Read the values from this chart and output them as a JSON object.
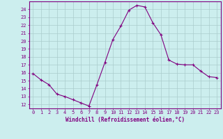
{
  "x": [
    0,
    1,
    2,
    3,
    4,
    5,
    6,
    7,
    8,
    9,
    10,
    11,
    12,
    13,
    14,
    15,
    16,
    17,
    18,
    19,
    20,
    21,
    22,
    23
  ],
  "y": [
    15.9,
    15.1,
    14.5,
    13.3,
    13.0,
    12.6,
    12.2,
    11.8,
    14.5,
    17.3,
    20.2,
    21.9,
    23.9,
    24.5,
    24.3,
    22.3,
    20.8,
    17.6,
    17.1,
    17.0,
    17.0,
    16.2,
    15.5,
    15.4
  ],
  "line_color": "#800080",
  "marker": "+",
  "marker_size": 3,
  "bg_color": "#cceeee",
  "grid_color": "#aacccc",
  "xlabel": "Windchill (Refroidissement éolien,°C)",
  "xlim": [
    -0.5,
    23.5
  ],
  "ylim": [
    11.5,
    25.0
  ],
  "yticks": [
    12,
    13,
    14,
    15,
    16,
    17,
    18,
    19,
    20,
    21,
    22,
    23,
    24
  ],
  "xticks": [
    0,
    1,
    2,
    3,
    4,
    5,
    6,
    7,
    8,
    9,
    10,
    11,
    12,
    13,
    14,
    15,
    16,
    17,
    18,
    19,
    20,
    21,
    22,
    23
  ],
  "tick_color": "#800080",
  "label_color": "#800080",
  "spine_color": "#800080",
  "tick_fontsize": 5,
  "xlabel_fontsize": 5.5
}
